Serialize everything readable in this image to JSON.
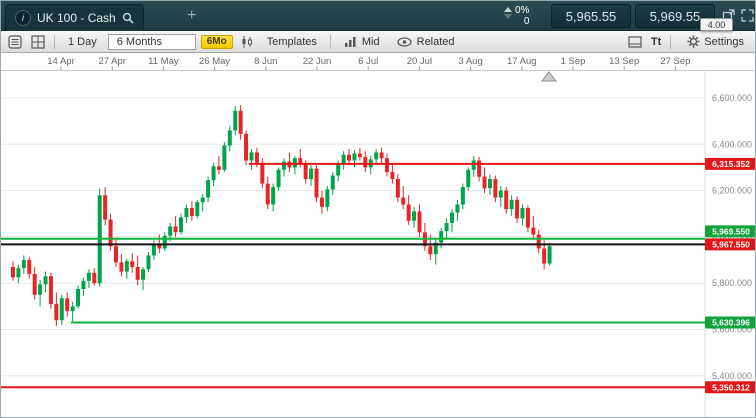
{
  "top_bar": {
    "instrument": "UK 100 - Cash",
    "new_tab": "+",
    "change_percent": "0%",
    "change_points": "0",
    "sell_price": "5,965.55",
    "buy_price": "5,969.55",
    "spread": "4.00"
  },
  "toolbar": {
    "interval_label": "1 Day",
    "range_label": "6 Months",
    "range_badge": "6Mo",
    "templates_label": "Templates",
    "price_type_label": "Mid",
    "related_label": "Related",
    "text_size_label": "Tt",
    "settings_label": "Settings"
  },
  "chart": {
    "x_axis_dates": [
      "14 Apr",
      "27 Apr",
      "11 May",
      "26 May",
      "8 Jun",
      "22 Jun",
      "6 Jul",
      "20 Jul",
      "3 Aug",
      "17 Aug",
      "1 Sep",
      "13 Sep",
      "27 Sep"
    ],
    "y_axis": [
      {
        "label": "6,600.000",
        "value": 6600
      },
      {
        "label": "6,400.000",
        "value": 6400
      },
      {
        "label": "6,200.000",
        "value": 6200
      },
      {
        "label": "6,000.000",
        "value": 6000
      },
      {
        "label": "5,800.000",
        "value": 5800
      },
      {
        "label": "5,600.000",
        "value": 5600
      },
      {
        "label": "5,400.000",
        "value": 5400
      }
    ],
    "price_lines": [
      {
        "name": "resistance-line",
        "label": "6,315.352",
        "value": 6315.352,
        "line_color": "#e21717",
        "box_color": "#e21717",
        "x_start": 248
      },
      {
        "name": "buy-price-line",
        "label": "5,969.550",
        "value": 5992,
        "line_color": "#0cb53b",
        "box_color": "#12a33a",
        "x_start": 0
      },
      {
        "name": "current-price-line",
        "label": "5,967.550",
        "value": 5967.55,
        "line_color": "#161616",
        "box_color": "#e21717",
        "x_start": 0
      },
      {
        "name": "support-line",
        "label": "5,630.396",
        "value": 5630.396,
        "line_color": "#0cb53b",
        "box_color": "#12a33a",
        "x_start": 70
      },
      {
        "name": "lower-support-line",
        "label": "5,350.312",
        "value": 5350.312,
        "line_color": "#e21717",
        "box_color": "#e21717",
        "x_start": 0
      }
    ]
  },
  "chart_data": {
    "type": "candlestick",
    "instrument": "UK 100 - Cash",
    "interval": "1 Day",
    "range": "6 Months",
    "price_type": "Mid",
    "y_range": [
      5214,
      6795
    ],
    "colors": {
      "up": "#00a44a",
      "down": "#e52528"
    },
    "candles": [
      [
        5870,
        5895,
        5810,
        5825
      ],
      [
        5825,
        5880,
        5800,
        5865
      ],
      [
        5865,
        5920,
        5840,
        5900
      ],
      [
        5900,
        5915,
        5820,
        5840
      ],
      [
        5840,
        5870,
        5730,
        5750
      ],
      [
        5750,
        5815,
        5700,
        5795
      ],
      [
        5795,
        5850,
        5760,
        5830
      ],
      [
        5830,
        5845,
        5690,
        5710
      ],
      [
        5710,
        5760,
        5615,
        5640
      ],
      [
        5640,
        5750,
        5620,
        5735
      ],
      [
        5735,
        5760,
        5655,
        5680
      ],
      [
        5680,
        5720,
        5630,
        5700
      ],
      [
        5700,
        5790,
        5690,
        5775
      ],
      [
        5775,
        5825,
        5745,
        5810
      ],
      [
        5810,
        5860,
        5780,
        5845
      ],
      [
        5845,
        5865,
        5790,
        5800
      ],
      [
        5800,
        6210,
        5785,
        6180
      ],
      [
        6180,
        6215,
        6050,
        6075
      ],
      [
        6075,
        6100,
        5940,
        5960
      ],
      [
        5960,
        5990,
        5870,
        5890
      ],
      [
        5890,
        5925,
        5830,
        5850
      ],
      [
        5850,
        5905,
        5820,
        5895
      ],
      [
        5895,
        5930,
        5845,
        5870
      ],
      [
        5870,
        5920,
        5790,
        5815
      ],
      [
        5815,
        5870,
        5770,
        5860
      ],
      [
        5860,
        5935,
        5850,
        5920
      ],
      [
        5920,
        5985,
        5900,
        5970
      ],
      [
        5970,
        6010,
        5930,
        5950
      ],
      [
        5950,
        6020,
        5940,
        6005
      ],
      [
        6005,
        6060,
        5980,
        6045
      ],
      [
        6045,
        6090,
        6000,
        6020
      ],
      [
        6020,
        6100,
        6010,
        6085
      ],
      [
        6085,
        6140,
        6060,
        6125
      ],
      [
        6125,
        6155,
        6070,
        6090
      ],
      [
        6090,
        6160,
        6080,
        6150
      ],
      [
        6150,
        6185,
        6110,
        6170
      ],
      [
        6170,
        6260,
        6150,
        6245
      ],
      [
        6245,
        6320,
        6220,
        6305
      ],
      [
        6305,
        6350,
        6270,
        6290
      ],
      [
        6290,
        6410,
        6280,
        6395
      ],
      [
        6395,
        6480,
        6370,
        6460
      ],
      [
        6460,
        6565,
        6440,
        6545
      ],
      [
        6545,
        6570,
        6420,
        6445
      ],
      [
        6445,
        6460,
        6310,
        6330
      ],
      [
        6330,
        6380,
        6290,
        6365
      ],
      [
        6365,
        6385,
        6300,
        6320
      ],
      [
        6320,
        6340,
        6210,
        6230
      ],
      [
        6230,
        6260,
        6120,
        6140
      ],
      [
        6140,
        6230,
        6110,
        6215
      ],
      [
        6215,
        6300,
        6200,
        6290
      ],
      [
        6290,
        6340,
        6260,
        6325
      ],
      [
        6325,
        6365,
        6280,
        6300
      ],
      [
        6300,
        6350,
        6270,
        6340
      ],
      [
        6340,
        6380,
        6300,
        6315
      ],
      [
        6315,
        6330,
        6230,
        6250
      ],
      [
        6250,
        6310,
        6220,
        6295
      ],
      [
        6295,
        6310,
        6150,
        6170
      ],
      [
        6170,
        6200,
        6100,
        6130
      ],
      [
        6130,
        6220,
        6110,
        6205
      ],
      [
        6205,
        6280,
        6180,
        6265
      ],
      [
        6265,
        6330,
        6240,
        6315
      ],
      [
        6315,
        6370,
        6290,
        6355
      ],
      [
        6355,
        6380,
        6310,
        6330
      ],
      [
        6330,
        6375,
        6300,
        6360
      ],
      [
        6360,
        6385,
        6330,
        6345
      ],
      [
        6345,
        6370,
        6280,
        6300
      ],
      [
        6300,
        6350,
        6270,
        6335
      ],
      [
        6335,
        6380,
        6310,
        6365
      ],
      [
        6365,
        6385,
        6320,
        6340
      ],
      [
        6340,
        6360,
        6260,
        6280
      ],
      [
        6280,
        6320,
        6230,
        6250
      ],
      [
        6250,
        6270,
        6150,
        6170
      ],
      [
        6170,
        6220,
        6120,
        6140
      ],
      [
        6140,
        6180,
        6050,
        6070
      ],
      [
        6070,
        6130,
        6040,
        6110
      ],
      [
        6110,
        6140,
        6000,
        6020
      ],
      [
        6020,
        6060,
        5940,
        5960
      ],
      [
        5960,
        6010,
        5900,
        5925
      ],
      [
        5925,
        5990,
        5880,
        5975
      ],
      [
        5975,
        6040,
        5950,
        6025
      ],
      [
        6025,
        6080,
        5990,
        6060
      ],
      [
        6060,
        6120,
        6020,
        6105
      ],
      [
        6105,
        6160,
        6070,
        6140
      ],
      [
        6140,
        6230,
        6120,
        6215
      ],
      [
        6215,
        6300,
        6200,
        6290
      ],
      [
        6290,
        6350,
        6260,
        6330
      ],
      [
        6330,
        6345,
        6240,
        6260
      ],
      [
        6260,
        6300,
        6190,
        6210
      ],
      [
        6210,
        6270,
        6180,
        6250
      ],
      [
        6250,
        6265,
        6150,
        6170
      ],
      [
        6170,
        6220,
        6130,
        6200
      ],
      [
        6200,
        6215,
        6100,
        6120
      ],
      [
        6120,
        6180,
        6090,
        6160
      ],
      [
        6160,
        6175,
        6060,
        6080
      ],
      [
        6080,
        6140,
        6050,
        6125
      ],
      [
        6125,
        6135,
        6020,
        6040
      ],
      [
        6040,
        6090,
        5990,
        6010
      ],
      [
        6010,
        6030,
        5930,
        5950
      ],
      [
        5950,
        5985,
        5860,
        5885
      ],
      [
        5885,
        5975,
        5875,
        5960
      ]
    ]
  }
}
